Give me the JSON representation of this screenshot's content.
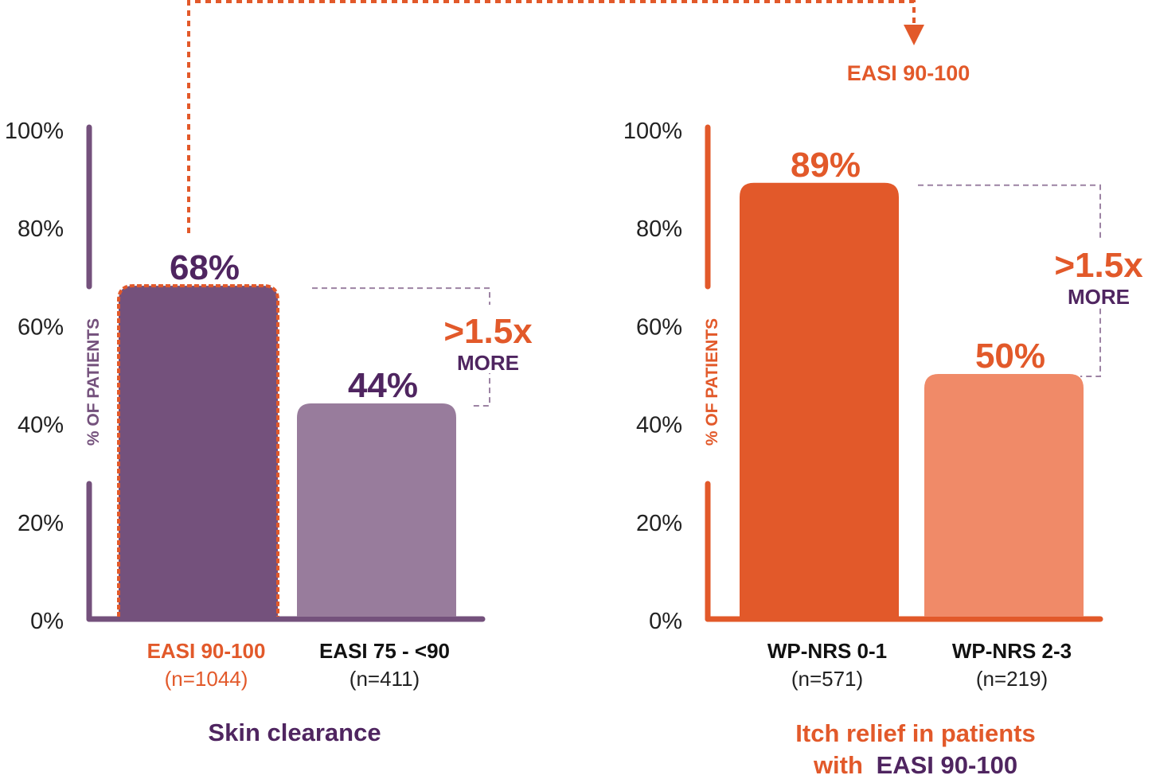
{
  "colors": {
    "purple_dark": "#4f2560",
    "purple": "#74517c",
    "purple_light": "#987c9c",
    "orange": "#e2592a",
    "orange_light": "#f08a68",
    "dash_gray": "#9c82a3"
  },
  "connector_label": "EASI 90-100",
  "chart_data": [
    {
      "type": "bar",
      "title": "Skin clearance",
      "ylabel": "% OF PATIENTS",
      "ylim": [
        0,
        100
      ],
      "yticks": [
        "0%",
        "20%",
        "40%",
        "60%",
        "80%",
        "100%"
      ],
      "categories": [
        "EASI 90-100",
        "EASI 75 - <90"
      ],
      "n_labels": [
        "(n=1044)",
        "(n=411)"
      ],
      "values": [
        68,
        44
      ],
      "data_labels": [
        "68%",
        "44%"
      ],
      "annotation": {
        "value": ">1.5x",
        "text": "MORE"
      }
    },
    {
      "type": "bar",
      "title": "Itch relief in patients",
      "title_line2_prefix": "with",
      "title_line2_highlight": "EASI 90-100",
      "ylabel": "% OF PATIENTS",
      "ylim": [
        0,
        100
      ],
      "yticks": [
        "0%",
        "20%",
        "40%",
        "60%",
        "80%",
        "100%"
      ],
      "categories": [
        "WP-NRS 0-1",
        "WP-NRS 2-3"
      ],
      "n_labels": [
        "(n=571)",
        "(n=219)"
      ],
      "values": [
        89,
        50
      ],
      "data_labels": [
        "89%",
        "50%"
      ],
      "annotation": {
        "value": ">1.5x",
        "text": "MORE"
      }
    }
  ]
}
